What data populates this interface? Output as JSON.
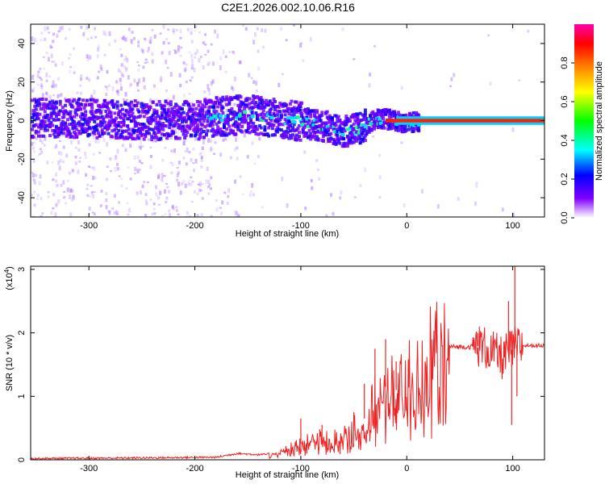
{
  "title": "C2E1.2026.002.10.06.R16",
  "chart_data": [
    {
      "type": "heatmap",
      "xlabel": "Height of straight line (km)",
      "ylabel": "Frequency (Hz)",
      "xlim": [
        -355,
        130
      ],
      "ylim": [
        -50,
        50
      ],
      "xticks": [
        -300,
        -200,
        -100,
        0,
        100
      ],
      "yticks": [
        -40,
        -20,
        0,
        20,
        40
      ],
      "colorbar": {
        "label": "Normalized spectral amplitude",
        "range": [
          0.0,
          1.0
        ],
        "ticks": [
          "0.0",
          "0.2",
          "0.4",
          "0.6",
          "0.8"
        ],
        "tick_values": [
          0.0,
          0.2,
          0.4,
          0.6,
          0.8
        ],
        "colors": [
          "#ffffff",
          "#8000ff",
          "#0000ff",
          "#00ffff",
          "#00ff00",
          "#ffff00",
          "#ff8000",
          "#ff0000",
          "#ff00aa"
        ]
      },
      "ridge": {
        "x": [
          -355,
          -300,
          -250,
          -200,
          -180,
          -150,
          -120,
          -100,
          -80,
          -60,
          -45,
          -35,
          -25,
          -15,
          -5,
          10,
          130
        ],
        "y": [
          2,
          2,
          1,
          1,
          3,
          4,
          2,
          0,
          -2,
          -5,
          -3,
          0,
          2,
          1,
          0,
          0,
          0
        ]
      }
    },
    {
      "type": "line",
      "xlabel": "Height of straight line (km)",
      "ylabel": "SNR (10 * v/v)",
      "y_multiplier": "(x10",
      "y_multiplier_exp": "4",
      "y_multiplier_close": ")",
      "xlim": [
        -355,
        130
      ],
      "ylim": [
        0,
        3.05
      ],
      "xticks": [
        -300,
        -200,
        -100,
        0,
        100
      ],
      "yticks": [
        0,
        1,
        2,
        3
      ],
      "series": [
        {
          "color": "#ee2222",
          "envelope": {
            "x": [
              -355,
              -250,
              -180,
              -160,
              -140,
              -120,
              -100,
              -90,
              -80,
              -70,
              -60,
              -50,
              -40,
              -30,
              -20,
              -10,
              0,
              10,
              20,
              30,
              40,
              50,
              60,
              70,
              80,
              90,
              100,
              110,
              120,
              130
            ],
            "y": [
              0.02,
              0.03,
              0.04,
              0.1,
              0.08,
              0.1,
              0.25,
              0.35,
              0.3,
              0.3,
              0.35,
              0.45,
              0.65,
              0.85,
              1.15,
              1.1,
              1.2,
              1.4,
              1.55,
              1.7,
              1.78,
              1.78,
              1.78,
              1.8,
              1.7,
              1.6,
              1.75,
              1.8,
              1.8,
              1.8
            ]
          },
          "spikes": [
            {
              "x": -100,
              "y": 0.65
            },
            {
              "x": -80,
              "y": 0.55
            },
            {
              "x": -50,
              "y": 0.75
            },
            {
              "x": -40,
              "y": 1.2
            },
            {
              "x": -30,
              "y": 1.75
            },
            {
              "x": -20,
              "y": 1.9
            },
            {
              "x": -10,
              "y": 1.55
            },
            {
              "x": 67,
              "y": 2.0
            },
            {
              "x": 96,
              "y": 2.5
            },
            {
              "x": 99,
              "y": 0.55
            },
            {
              "x": 102,
              "y": 3.05
            },
            {
              "x": 104,
              "y": 1.0
            }
          ]
        }
      ]
    }
  ]
}
